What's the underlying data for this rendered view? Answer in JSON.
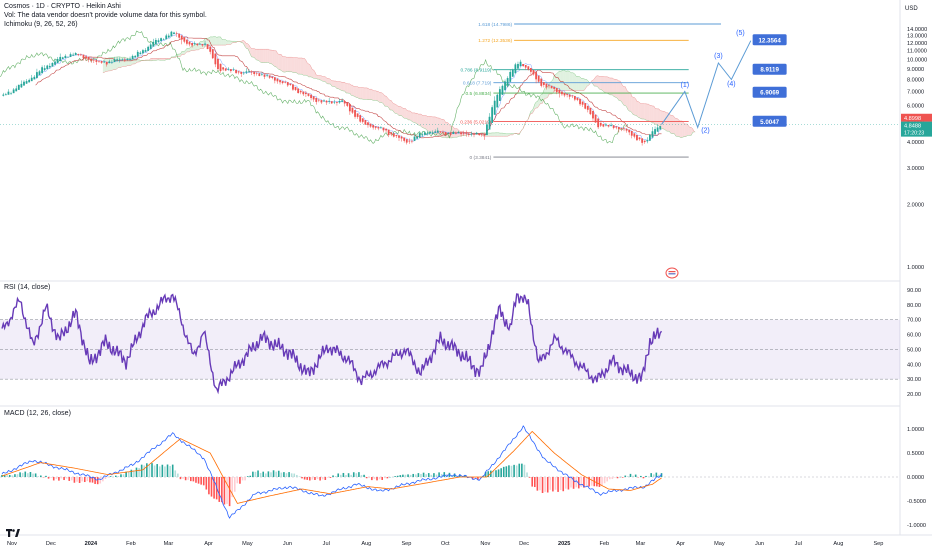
{
  "header": {
    "symbol_line": "Cosmos · 1D · CRYPTO · Heikin Ashi",
    "volume_note": "Vol: The data vendor doesn't provide volume data for this symbol.",
    "ichimoku_label": "Ichimoku (9, 26, 52, 26)"
  },
  "colors": {
    "up": "#26a69a",
    "down": "#ef5350",
    "rsi_line": "#673ab7",
    "macd_line": "#2962ff",
    "signal_line": "#ff6d00",
    "cloud_bull": "#a5d6a7",
    "cloud_bear": "#ef9a9a",
    "lagging": "#43a047",
    "conversion": "#2962ff",
    "base": "#b71c1c"
  },
  "price_axis": {
    "currency": "USD",
    "ticks": [
      "14.0000",
      "13.0000",
      "12.0000",
      "11.0000",
      "10.0000",
      "9.0000",
      "8.0000",
      "7.0000",
      "6.0000",
      "5.0000",
      "4.0000",
      "3.0000",
      "2.0000",
      "1.0000"
    ],
    "last_price_tag": "4.8488",
    "last_price_time": "17:20:23",
    "prev_price_tag": "4.8998"
  },
  "fib_levels": [
    {
      "label": "1.618 (14.7986)",
      "value": 14.7986,
      "color": "#5b9bd5"
    },
    {
      "label": "1.272 (12.3536)",
      "value": 12.3536,
      "color": "#f5a623"
    },
    {
      "label": "0.786 (8.9119)",
      "value": 8.9119,
      "color": "#26a69a"
    },
    {
      "label": "0.618 (7.719)",
      "value": 7.719,
      "color": "#5b9bd5"
    },
    {
      "label": "0.5 (6.8834)",
      "value": 6.8834,
      "color": "#4caf50"
    },
    {
      "label": "0.236 (5.0219)",
      "value": 5.0219,
      "color": "#ef5350"
    },
    {
      "label": "0 (3.3841)",
      "value": 3.3841,
      "color": "#787b86"
    }
  ],
  "targets": [
    {
      "label": "12.3564",
      "value": 12.3564
    },
    {
      "label": "8.9119",
      "value": 8.9119
    },
    {
      "label": "6.9069",
      "value": 6.9069
    },
    {
      "label": "5.0047",
      "value": 5.0047
    }
  ],
  "wave_labels": [
    "(1)",
    "(2)",
    "(3)",
    "(4)",
    "(5)"
  ],
  "rsi": {
    "label": "RSI (14, close)",
    "ticks": [
      "90.00",
      "80.00",
      "70.00",
      "60.00",
      "50.00",
      "40.00",
      "30.00",
      "20.00"
    ],
    "current": 60.7,
    "upper": 70,
    "middle": 50,
    "lower": 30
  },
  "macd": {
    "label": "MACD (12, 26, close)",
    "ticks": [
      "1.0000",
      "0.5000",
      "0.0000",
      "-0.5000",
      "-1.0000"
    ]
  },
  "time_axis": [
    "Nov",
    "Dec",
    "2024",
    "Feb",
    "Mar",
    "Apr",
    "May",
    "Jun",
    "Jul",
    "Aug",
    "Sep",
    "Oct",
    "Nov",
    "Dec",
    "2025",
    "Feb",
    "Mar",
    "Apr",
    "May",
    "Jun",
    "Jul",
    "Aug",
    "Sep"
  ],
  "chart_data": [
    {
      "type": "candlestick",
      "title": "Cosmos · 1D · CRYPTO · Heikin Ashi",
      "ylabel": "USD",
      "ylim": [
        0.5,
        14.8
      ],
      "x_start": "2023-11-01",
      "x_end": "2025-09-20",
      "close_anchors": [
        [
          "2023-11-01",
          6.6
        ],
        [
          "2023-11-20",
          7.9
        ],
        [
          "2023-12-10",
          9.7
        ],
        [
          "2023-12-25",
          10.7
        ],
        [
          "2024-01-15",
          9.6
        ],
        [
          "2024-02-10",
          10.2
        ],
        [
          "2024-03-01",
          12.5
        ],
        [
          "2024-03-12",
          13.5
        ],
        [
          "2024-03-25",
          11.6
        ],
        [
          "2024-04-05",
          12.0
        ],
        [
          "2024-04-15",
          9.0
        ],
        [
          "2024-04-30",
          8.7
        ],
        [
          "2024-05-15",
          8.6
        ],
        [
          "2024-06-05",
          7.7
        ],
        [
          "2024-06-20",
          6.8
        ],
        [
          "2024-07-05",
          6.2
        ],
        [
          "2024-07-20",
          6.3
        ],
        [
          "2024-08-05",
          4.9
        ],
        [
          "2024-08-20",
          4.6
        ],
        [
          "2024-09-08",
          4.0
        ],
        [
          "2024-09-25",
          4.5
        ],
        [
          "2024-10-10",
          4.4
        ],
        [
          "2024-10-25",
          4.4
        ],
        [
          "2024-11-07",
          4.3
        ],
        [
          "2024-11-20",
          7.3
        ],
        [
          "2024-12-05",
          9.8
        ],
        [
          "2024-12-20",
          7.7
        ],
        [
          "2025-01-05",
          6.9
        ],
        [
          "2025-01-20",
          6.3
        ],
        [
          "2025-02-03",
          4.8
        ],
        [
          "2025-02-20",
          4.7
        ],
        [
          "2025-03-05",
          4.2
        ],
        [
          "2025-03-12",
          3.9
        ],
        [
          "2025-03-18",
          4.6
        ],
        [
          "2025-03-25",
          4.85
        ]
      ]
    },
    {
      "type": "line",
      "title": "RSI (14, close)",
      "ylim": [
        15,
        95
      ],
      "anchors": [
        [
          "2023-11-01",
          62
        ],
        [
          "2023-11-15",
          83
        ],
        [
          "2023-11-25",
          52
        ],
        [
          "2023-12-05",
          78
        ],
        [
          "2023-12-15",
          56
        ],
        [
          "2023-12-28",
          74
        ],
        [
          "2024-01-08",
          40
        ],
        [
          "2024-01-20",
          55
        ],
        [
          "2024-02-05",
          42
        ],
        [
          "2024-02-20",
          70
        ],
        [
          "2024-03-05",
          83
        ],
        [
          "2024-03-12",
          87
        ],
        [
          "2024-03-28",
          45
        ],
        [
          "2024-04-05",
          62
        ],
        [
          "2024-04-15",
          22
        ],
        [
          "2024-04-30",
          38
        ],
        [
          "2024-05-20",
          58
        ],
        [
          "2024-06-10",
          48
        ],
        [
          "2024-06-25",
          33
        ],
        [
          "2024-07-10",
          52
        ],
        [
          "2024-07-25",
          44
        ],
        [
          "2024-08-05",
          29
        ],
        [
          "2024-08-25",
          42
        ],
        [
          "2024-09-08",
          50
        ],
        [
          "2024-09-20",
          34
        ],
        [
          "2024-10-05",
          57
        ],
        [
          "2024-10-20",
          48
        ],
        [
          "2024-11-05",
          34
        ],
        [
          "2024-11-20",
          78
        ],
        [
          "2024-11-28",
          62
        ],
        [
          "2024-12-03",
          88
        ],
        [
          "2024-12-12",
          80
        ],
        [
          "2024-12-20",
          40
        ],
        [
          "2025-01-02",
          57
        ],
        [
          "2025-01-12",
          47
        ],
        [
          "2025-01-22",
          38
        ],
        [
          "2025-02-03",
          29
        ],
        [
          "2025-02-15",
          42
        ],
        [
          "2025-02-28",
          34
        ],
        [
          "2025-03-10",
          30
        ],
        [
          "2025-03-16",
          56
        ],
        [
          "2025-03-25",
          60.7
        ]
      ]
    },
    {
      "type": "line",
      "title": "MACD (12, 26, close)",
      "ylim": [
        -1.2,
        1.2
      ],
      "macd_anchors": [
        [
          "2023-11-01",
          0.05
        ],
        [
          "2023-11-25",
          0.35
        ],
        [
          "2023-12-20",
          0.15
        ],
        [
          "2024-01-15",
          -0.05
        ],
        [
          "2024-02-10",
          0.25
        ],
        [
          "2024-03-12",
          0.9
        ],
        [
          "2024-04-05",
          0.4
        ],
        [
          "2024-04-25",
          -0.85
        ],
        [
          "2024-05-15",
          -0.35
        ],
        [
          "2024-06-10",
          -0.2
        ],
        [
          "2024-07-05",
          -0.4
        ],
        [
          "2024-08-01",
          -0.15
        ],
        [
          "2024-08-20",
          -0.3
        ],
        [
          "2024-09-15",
          -0.1
        ],
        [
          "2024-10-15",
          0.05
        ],
        [
          "2024-11-05",
          -0.05
        ],
        [
          "2024-11-25",
          0.6
        ],
        [
          "2024-12-08",
          1.05
        ],
        [
          "2024-12-25",
          0.35
        ],
        [
          "2025-01-15",
          -0.05
        ],
        [
          "2025-02-05",
          -0.35
        ],
        [
          "2025-02-25",
          -0.25
        ],
        [
          "2025-03-12",
          -0.2
        ],
        [
          "2025-03-25",
          0.05
        ]
      ],
      "signal_anchors": [
        [
          "2023-11-01",
          0.02
        ],
        [
          "2023-12-01",
          0.3
        ],
        [
          "2023-12-28",
          0.18
        ],
        [
          "2024-01-22",
          0.05
        ],
        [
          "2024-02-18",
          0.15
        ],
        [
          "2024-03-18",
          0.8
        ],
        [
          "2024-04-10",
          0.5
        ],
        [
          "2024-05-01",
          -0.55
        ],
        [
          "2024-05-25",
          -0.4
        ],
        [
          "2024-06-20",
          -0.25
        ],
        [
          "2024-07-12",
          -0.35
        ],
        [
          "2024-08-10",
          -0.2
        ],
        [
          "2024-08-28",
          -0.25
        ],
        [
          "2024-09-25",
          -0.12
        ],
        [
          "2024-10-20",
          0.0
        ],
        [
          "2024-11-10",
          0.0
        ],
        [
          "2024-12-01",
          0.55
        ],
        [
          "2024-12-15",
          0.95
        ],
        [
          "2025-01-01",
          0.5
        ],
        [
          "2025-01-22",
          0.05
        ],
        [
          "2025-02-12",
          -0.25
        ],
        [
          "2025-03-01",
          -0.28
        ],
        [
          "2025-03-18",
          -0.15
        ],
        [
          "2025-03-25",
          -0.02
        ]
      ]
    }
  ]
}
